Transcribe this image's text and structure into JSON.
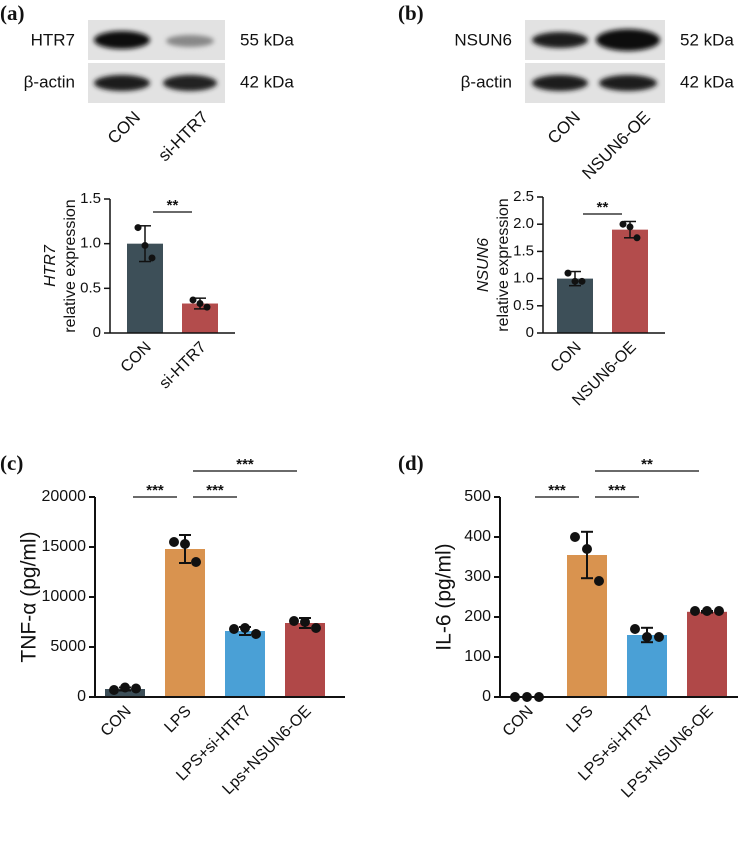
{
  "panels": [
    "(a)",
    "(b)",
    "(c)",
    "(d)"
  ],
  "blots": [
    {
      "rows": [
        {
          "protein": "HTR7",
          "size": "55 kDa"
        },
        {
          "protein": "β-actin",
          "size": "42 kDa"
        }
      ],
      "lanes": [
        "CON",
        "si-HTR7"
      ]
    },
    {
      "rows": [
        {
          "protein": "NSUN6",
          "size": "52 kDa"
        },
        {
          "protein": "β-actin",
          "size": "42 kDa"
        }
      ],
      "lanes": [
        "CON",
        "NSUN6-OE"
      ]
    }
  ],
  "chart_data": [
    {
      "type": "bar",
      "ylabel_gene": "HTR7",
      "ylabel": "relative expression",
      "categories": [
        "CON",
        "si-HTR7"
      ],
      "values": [
        1.0,
        0.33
      ],
      "errors": [
        0.2,
        0.06
      ],
      "points": [
        [
          1.18,
          0.98,
          0.84
        ],
        [
          0.37,
          0.33,
          0.29
        ]
      ],
      "colors": [
        "#3d4f58",
        "#b34c4c"
      ],
      "ylim": [
        0,
        1.5
      ],
      "yticks": [
        0,
        0.5,
        {
          "value": 1,
          "label": "1.0"
        },
        1.5
      ],
      "significance": [
        {
          "between": [
            "CON",
            "si-HTR7"
          ],
          "label": "**"
        }
      ]
    },
    {
      "type": "bar",
      "ylabel_gene": "NSUN6",
      "ylabel": "relative expression",
      "categories": [
        "CON",
        "NSUN6-OE"
      ],
      "values": [
        1.0,
        1.9
      ],
      "errors": [
        0.13,
        0.15
      ],
      "points": [
        [
          1.1,
          0.95,
          0.95
        ],
        [
          2.0,
          1.95,
          1.75
        ]
      ],
      "colors": [
        "#3d4f58",
        "#b34c4c"
      ],
      "ylim": [
        0,
        2.5
      ],
      "yticks": [
        0,
        0.5,
        {
          "value": 1,
          "label": "1.0"
        },
        1.5,
        {
          "value": 2,
          "label": "2.0"
        },
        2.5
      ],
      "significance": [
        {
          "between": [
            "CON",
            "NSUN6-OE"
          ],
          "label": "**"
        }
      ]
    },
    {
      "type": "bar",
      "ylabel": "TNF-α  (pg/ml)",
      "categories": [
        "CON",
        "LPS",
        "LPS+si-HTR7",
        "Lps+NSUN6-OE"
      ],
      "values": [
        800,
        14800,
        6600,
        7400
      ],
      "errors": [
        150,
        1400,
        400,
        500
      ],
      "points": [
        [
          700,
          950,
          850
        ],
        [
          15500,
          15300,
          13500
        ],
        [
          6800,
          6900,
          6300
        ],
        [
          7600,
          7500,
          6900
        ]
      ],
      "colors": [
        "#3d4f58",
        "#d9934f",
        "#4aa0d6",
        "#b04848"
      ],
      "ylim": [
        0,
        20000
      ],
      "yticks": [
        0,
        5000,
        10000,
        15000,
        20000
      ],
      "significance": [
        {
          "between": [
            "CON",
            "LPS"
          ],
          "label": "***"
        },
        {
          "between": [
            "LPS",
            "LPS+si-HTR7"
          ],
          "label": "***"
        },
        {
          "between": [
            "LPS",
            "Lps+NSUN6-OE"
          ],
          "label": "***"
        }
      ]
    },
    {
      "type": "bar",
      "ylabel": "IL-6 (pg/ml)",
      "categories": [
        "CON",
        "LPS",
        "LPS+si-HTR7",
        "LPS+NSUN6-OE"
      ],
      "values": [
        0,
        355,
        155,
        213
      ],
      "errors": [
        0,
        58,
        18,
        2
      ],
      "points": [
        [
          0,
          0,
          0
        ],
        [
          400,
          370,
          290
        ],
        [
          170,
          150,
          150
        ],
        [
          215,
          215,
          215
        ]
      ],
      "colors": [
        "#3d4f58",
        "#d9934f",
        "#4aa0d6",
        "#b04848"
      ],
      "ylim": [
        0,
        500
      ],
      "yticks": [
        0,
        100,
        200,
        300,
        400,
        500
      ],
      "significance": [
        {
          "between": [
            "CON",
            "LPS"
          ],
          "label": "***"
        },
        {
          "between": [
            "LPS",
            "LPS+si-HTR7"
          ],
          "label": "***"
        },
        {
          "between": [
            "LPS",
            "LPS+NSUN6-OE"
          ],
          "label": "**"
        }
      ]
    }
  ]
}
